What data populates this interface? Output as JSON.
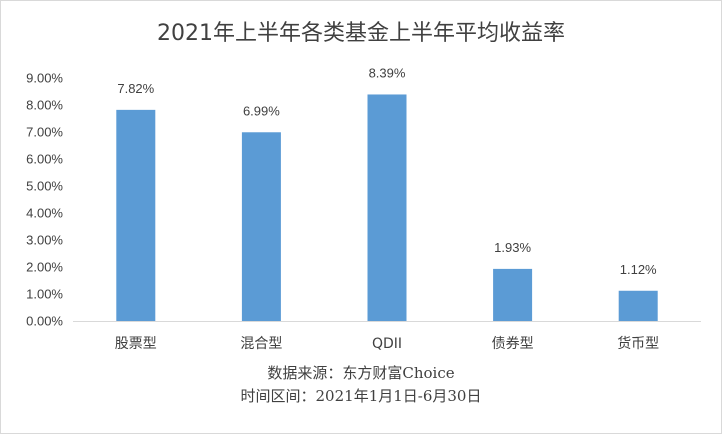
{
  "chart_data": {
    "type": "bar",
    "title": "2021年上半年各类基金上半年平均收益率",
    "categories": [
      "股票型",
      "混合型",
      "QDII",
      "债券型",
      "货币型"
    ],
    "values": [
      7.82,
      6.99,
      8.39,
      1.93,
      1.12
    ],
    "data_labels": [
      "7.82%",
      "6.99%",
      "8.39%",
      "1.93%",
      "1.12%"
    ],
    "ylim": [
      0,
      9
    ],
    "yticks": [
      "0.00%",
      "1.00%",
      "2.00%",
      "3.00%",
      "4.00%",
      "5.00%",
      "6.00%",
      "7.00%",
      "8.00%",
      "9.00%"
    ],
    "grid": false,
    "legend": "none",
    "bar_color": "#5b9bd5",
    "notes": [
      "数据来源：东方财富Choice",
      "时间区间：2021年1月1日-6月30日"
    ]
  }
}
